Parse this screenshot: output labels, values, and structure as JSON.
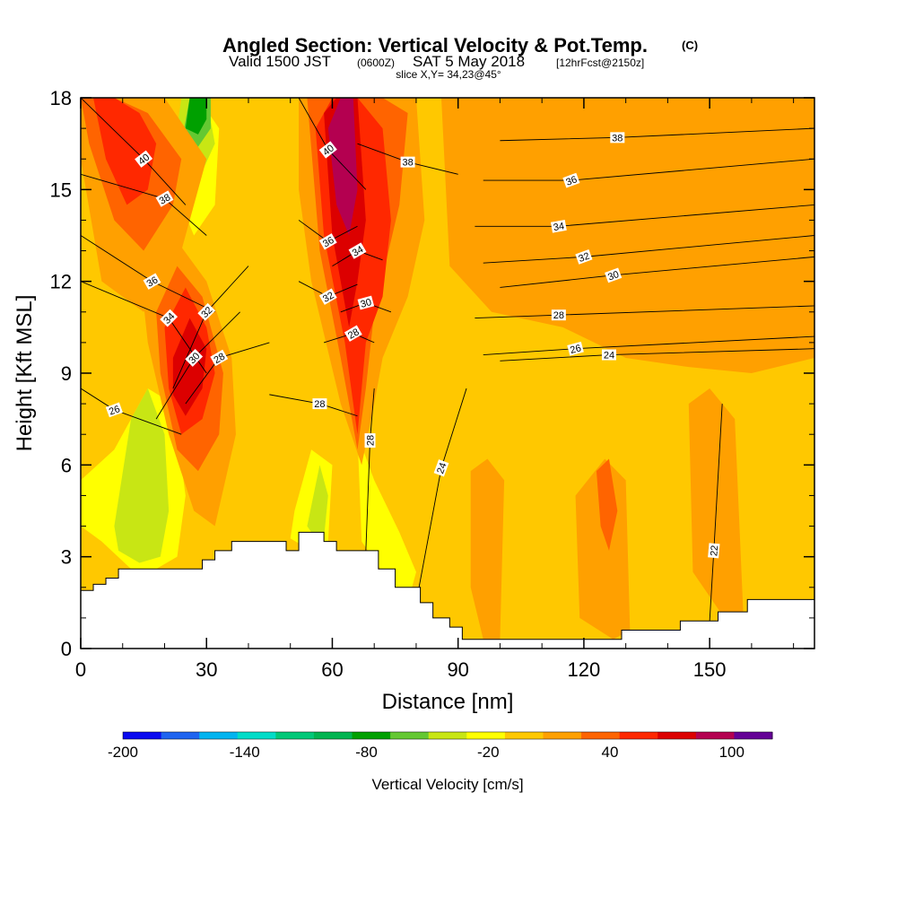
{
  "title": {
    "main": "Angled Section: Vertical Velocity & Pot.Temp.",
    "main_unit": "(C)",
    "valid_prefix": "Valid 1500 JST",
    "valid_utc": "(0600Z)",
    "valid_date": "SAT 5 May 2018",
    "forecast": "[12hrFcst@2150z]",
    "slice": "slice X,Y= 34,23@45°"
  },
  "chart_data": {
    "type": "heatmap",
    "xlabel": "Distance [nm]",
    "ylabel": "Height [Kft MSL]",
    "xlim": [
      0,
      175
    ],
    "ylim": [
      0,
      18
    ],
    "x_ticks": [
      "0",
      "30",
      "60",
      "90",
      "120",
      "150"
    ],
    "y_ticks": [
      "0",
      "3",
      "6",
      "9",
      "12",
      "15",
      "18"
    ],
    "colorbar": {
      "label": "Vertical Velocity [cm/s]",
      "tick_labels": [
        "-200",
        "-140",
        "-80",
        "-20",
        "40",
        "100"
      ],
      "tick_values": [
        -200,
        -140,
        -80,
        -20,
        40,
        100
      ],
      "levels": [
        -200,
        -180,
        -160,
        -140,
        -120,
        -100,
        -80,
        -60,
        -40,
        -20,
        0,
        20,
        40,
        60,
        80,
        100,
        120
      ],
      "colors": [
        "#0a0af0",
        "#1e64f0",
        "#00b4f0",
        "#00dcc8",
        "#00c878",
        "#00b450",
        "#00a000",
        "#64c832",
        "#c8e614",
        "#ffff00",
        "#ffc800",
        "#ffa000",
        "#ff6400",
        "#ff2800",
        "#dc0000",
        "#b40050",
        "#640096"
      ]
    },
    "terrain": [
      [
        0,
        1.9
      ],
      [
        3,
        1.9
      ],
      [
        3,
        2.1
      ],
      [
        6,
        2.1
      ],
      [
        6,
        2.3
      ],
      [
        9,
        2.3
      ],
      [
        9,
        2.6
      ],
      [
        29,
        2.6
      ],
      [
        29,
        2.9
      ],
      [
        32,
        2.9
      ],
      [
        32,
        3.2
      ],
      [
        36,
        3.2
      ],
      [
        36,
        3.5
      ],
      [
        49,
        3.5
      ],
      [
        49,
        3.2
      ],
      [
        52,
        3.2
      ],
      [
        52,
        3.8
      ],
      [
        58,
        3.8
      ],
      [
        58,
        3.5
      ],
      [
        61,
        3.5
      ],
      [
        61,
        3.2
      ],
      [
        71,
        3.2
      ],
      [
        71,
        2.6
      ],
      [
        75,
        2.6
      ],
      [
        75,
        2.0
      ],
      [
        81,
        2.0
      ],
      [
        81,
        1.5
      ],
      [
        84,
        1.5
      ],
      [
        84,
        1.0
      ],
      [
        88,
        1.0
      ],
      [
        88,
        0.7
      ],
      [
        91,
        0.7
      ],
      [
        91,
        0.3
      ],
      [
        129,
        0.3
      ],
      [
        129,
        0.6
      ],
      [
        143,
        0.6
      ],
      [
        143,
        0.9
      ],
      [
        152,
        0.9
      ],
      [
        152,
        1.2
      ],
      [
        159,
        1.2
      ],
      [
        159,
        1.6
      ],
      [
        175,
        1.6
      ]
    ],
    "velocity_regions": [
      {
        "value": -20,
        "color": "#ffff00",
        "x": [
          0,
          8,
          16,
          22,
          25,
          23,
          18,
          12,
          5,
          0
        ],
        "y": [
          5.5,
          6.5,
          8.5,
          8.0,
          5.0,
          3.0,
          2.6,
          2.6,
          3.5,
          4.0
        ]
      },
      {
        "value": -40,
        "color": "#c8e614",
        "x": [
          8,
          12,
          16,
          20,
          21,
          19,
          14,
          9
        ],
        "y": [
          4.0,
          7.5,
          8.5,
          7.0,
          4.5,
          3.0,
          2.8,
          3.2
        ]
      },
      {
        "value": -20,
        "color": "#ffff00",
        "x": [
          23,
          28,
          33,
          32,
          27,
          24
        ],
        "y": [
          16.0,
          18.0,
          17.0,
          14.5,
          13.5,
          14.5
        ]
      },
      {
        "value": -40,
        "color": "#c8e614",
        "x": [
          22,
          24,
          30,
          32,
          27
        ],
        "y": [
          16.0,
          18.0,
          18.0,
          16.5,
          15.0
        ]
      },
      {
        "value": -60,
        "color": "#64c832",
        "x": [
          24,
          26,
          31,
          31,
          27
        ],
        "y": [
          16.5,
          18.0,
          18.0,
          17.0,
          16.2
        ]
      },
      {
        "value": -80,
        "color": "#00a000",
        "x": [
          25,
          26,
          30,
          30,
          28
        ],
        "y": [
          17.0,
          18.0,
          18.0,
          17.3,
          16.8
        ]
      },
      {
        "value": -20,
        "color": "#ffff00",
        "x": [
          51,
          55,
          60,
          59,
          55,
          50
        ],
        "y": [
          4.5,
          6.5,
          6.0,
          3.5,
          3.2,
          3.6
        ]
      },
      {
        "value": -40,
        "color": "#c8e614",
        "x": [
          54,
          57,
          59,
          58,
          55
        ],
        "y": [
          4.0,
          6.0,
          5.0,
          3.6,
          3.8
        ]
      },
      {
        "value": -20,
        "color": "#ffff00",
        "x": [
          66,
          70,
          76,
          80,
          78,
          72,
          67
        ],
        "y": [
          7.0,
          5.5,
          3.8,
          2.5,
          1.5,
          2.5,
          3.5
        ]
      },
      {
        "value": 20,
        "color": "#ffa000",
        "x": [
          0,
          10,
          20,
          30,
          24,
          15,
          5,
          0
        ],
        "y": [
          18.0,
          18.0,
          18.0,
          16.0,
          13.0,
          11.0,
          12.0,
          16.0
        ]
      },
      {
        "value": 40,
        "color": "#ff6400",
        "x": [
          0,
          8,
          16,
          24,
          22,
          15,
          8,
          2
        ],
        "y": [
          18.0,
          18.0,
          17.5,
          16.0,
          14.5,
          13.0,
          14.0,
          16.5
        ]
      },
      {
        "value": 60,
        "color": "#ff2800",
        "x": [
          3,
          8,
          14,
          18,
          16,
          11,
          6
        ],
        "y": [
          18.0,
          18.0,
          17.5,
          16.5,
          15.0,
          14.5,
          16.0
        ]
      },
      {
        "value": 20,
        "color": "#ffa000",
        "x": [
          14,
          22,
          30,
          36,
          37,
          32,
          27,
          21,
          16
        ],
        "y": [
          12.5,
          13.5,
          12.0,
          9.5,
          7.0,
          4.0,
          4.5,
          7.0,
          10.0
        ]
      },
      {
        "value": 40,
        "color": "#ff6400",
        "x": [
          18,
          23,
          29,
          34,
          33,
          28,
          23,
          19
        ],
        "y": [
          11.0,
          12.5,
          11.5,
          9.0,
          7.0,
          5.8,
          6.5,
          9.0
        ]
      },
      {
        "value": 60,
        "color": "#ff2800",
        "x": [
          20,
          25,
          30,
          32,
          29,
          24,
          21
        ],
        "y": [
          10.5,
          11.8,
          10.5,
          9.0,
          7.5,
          7.0,
          8.5
        ]
      },
      {
        "value": 80,
        "color": "#dc0000",
        "x": [
          22,
          26,
          30,
          29,
          25,
          22
        ],
        "y": [
          9.5,
          10.8,
          9.8,
          8.5,
          7.6,
          8.3
        ]
      },
      {
        "value": 20,
        "color": "#ffa000",
        "x": [
          52,
          56,
          60,
          70,
          80,
          82,
          78,
          72,
          70,
          67,
          62,
          55,
          52
        ],
        "y": [
          18.0,
          18.0,
          18.0,
          18.0,
          18.0,
          14.0,
          11.5,
          9.5,
          8.0,
          6.0,
          8.0,
          12.0,
          15.0
        ]
      },
      {
        "value": 40,
        "color": "#ff6400",
        "x": [
          54,
          58,
          64,
          72,
          78,
          76,
          70,
          68,
          66,
          62,
          57
        ],
        "y": [
          18.0,
          18.0,
          18.0,
          18.0,
          17.5,
          14.5,
          11.0,
          8.5,
          6.5,
          9.5,
          13.0
        ]
      },
      {
        "value": 60,
        "color": "#ff2800",
        "x": [
          56,
          60,
          66,
          72,
          74,
          72,
          68,
          67,
          66,
          63,
          58
        ],
        "y": [
          17.0,
          18.0,
          18.0,
          17.0,
          14.0,
          11.5,
          10.0,
          8.5,
          7.0,
          10.0,
          13.5
        ]
      },
      {
        "value": 80,
        "color": "#dc0000",
        "x": [
          58,
          61,
          66,
          68,
          66,
          64,
          60
        ],
        "y": [
          17.5,
          18.0,
          18.0,
          14.0,
          12.0,
          10.5,
          13.5
        ]
      },
      {
        "value": 100,
        "color": "#b40050",
        "x": [
          59,
          62,
          65,
          66,
          64,
          61
        ],
        "y": [
          17.0,
          18.0,
          18.0,
          15.0,
          13.5,
          14.5
        ]
      },
      {
        "value": 20,
        "color": "#ffa000",
        "x": [
          86,
          95,
          112,
          125,
          140,
          155,
          168,
          175,
          175,
          160,
          145,
          130,
          115,
          98,
          88
        ],
        "y": [
          18.0,
          18.0,
          18.0,
          18.0,
          18.0,
          18.0,
          18.0,
          18.0,
          9.5,
          9.0,
          9.2,
          9.5,
          10.5,
          11.0,
          12.5
        ]
      },
      {
        "value": 20,
        "color": "#ffa000",
        "x": [
          93,
          97,
          101,
          100,
          96,
          93
        ],
        "y": [
          5.8,
          6.2,
          5.5,
          0.3,
          0.3,
          2.0
        ]
      },
      {
        "value": 20,
        "color": "#ffa000",
        "x": [
          118,
          125,
          130,
          131,
          127,
          119
        ],
        "y": [
          5.0,
          6.2,
          5.5,
          0.6,
          0.3,
          1.0
        ]
      },
      {
        "value": 40,
        "color": "#ff6400",
        "x": [
          123,
          126,
          128,
          126,
          124
        ],
        "y": [
          5.8,
          6.2,
          4.5,
          3.2,
          4.0
        ]
      },
      {
        "value": 20,
        "color": "#ffa000",
        "x": [
          145,
          150,
          156,
          158,
          154,
          146
        ],
        "y": [
          8.0,
          8.5,
          7.5,
          1.2,
          0.9,
          2.5
        ]
      },
      {
        "value": 20,
        "color": "#ffa000",
        "x": [
          158,
          164,
          170,
          172,
          168,
          160
        ],
        "y": [
          16.0,
          17.5,
          16.5,
          11.0,
          9.5,
          12.0
        ]
      }
    ],
    "theta_contours": [
      {
        "label": "40",
        "lx": 15,
        "ly": 16.0,
        "rot": -38,
        "x": [
          0,
          15,
          25
        ],
        "y": [
          18.0,
          16.0,
          14.5
        ]
      },
      {
        "label": "38",
        "lx": 20,
        "ly": 14.7,
        "rot": -30,
        "x": [
          0,
          20,
          30
        ],
        "y": [
          15.5,
          14.7,
          13.5
        ]
      },
      {
        "label": "36",
        "lx": 17,
        "ly": 12.0,
        "rot": -30,
        "x": [
          0,
          17,
          32
        ],
        "y": [
          13.5,
          12.0,
          11.0
        ]
      },
      {
        "label": "34",
        "lx": 21,
        "ly": 10.8,
        "rot": -45,
        "x": [
          0,
          21,
          30
        ],
        "y": [
          12.0,
          10.8,
          9.0
        ]
      },
      {
        "label": "32",
        "lx": 30,
        "ly": 11.0,
        "rot": -45,
        "x": [
          22,
          30,
          40
        ],
        "y": [
          8.5,
          11.0,
          12.5
        ]
      },
      {
        "label": "30",
        "lx": 27,
        "ly": 9.5,
        "rot": -45,
        "x": [
          18,
          27,
          38
        ],
        "y": [
          7.5,
          9.5,
          11.0
        ]
      },
      {
        "label": "28",
        "lx": 33,
        "ly": 9.5,
        "rot": -30,
        "x": [
          25,
          33,
          45
        ],
        "y": [
          8.0,
          9.5,
          10.0
        ]
      },
      {
        "label": "26",
        "lx": 8,
        "ly": 7.8,
        "rot": -20,
        "x": [
          0,
          8,
          24
        ],
        "y": [
          8.5,
          7.8,
          7.0
        ]
      },
      {
        "label": "40",
        "lx": 59,
        "ly": 16.3,
        "rot": -38,
        "x": [
          52,
          59,
          68
        ],
        "y": [
          18.0,
          16.3,
          15.0
        ]
      },
      {
        "label": "38",
        "lx": 78,
        "ly": 15.9,
        "rot": 0,
        "x": [
          66,
          78,
          90
        ],
        "y": [
          16.5,
          15.9,
          15.5
        ]
      },
      {
        "label": "36",
        "lx": 59,
        "ly": 13.3,
        "rot": -30,
        "x": [
          52,
          59,
          66
        ],
        "y": [
          14.0,
          13.3,
          13.8
        ]
      },
      {
        "label": "34",
        "lx": 66,
        "ly": 13.0,
        "rot": -30,
        "x": [
          60,
          66,
          72
        ],
        "y": [
          12.5,
          13.0,
          12.7
        ]
      },
      {
        "label": "32",
        "lx": 59,
        "ly": 11.5,
        "rot": -30,
        "x": [
          52,
          59,
          66
        ],
        "y": [
          12.0,
          11.5,
          11.9
        ]
      },
      {
        "label": "30",
        "lx": 68,
        "ly": 11.3,
        "rot": -15,
        "x": [
          62,
          68,
          74
        ],
        "y": [
          11.0,
          11.3,
          11.0
        ]
      },
      {
        "label": "28",
        "lx": 65,
        "ly": 10.3,
        "rot": -30,
        "x": [
          58,
          65,
          70
        ],
        "y": [
          10.0,
          10.3,
          10.0
        ]
      },
      {
        "label": "28",
        "lx": 57,
        "ly": 8.0,
        "rot": 0,
        "x": [
          45,
          57,
          66
        ],
        "y": [
          8.3,
          8.0,
          7.6
        ]
      },
      {
        "label": "28",
        "lx": 69,
        "ly": 6.8,
        "rot": -90,
        "x": [
          68,
          69,
          70
        ],
        "y": [
          3.2,
          6.8,
          8.5
        ]
      },
      {
        "label": "38",
        "lx": 128,
        "ly": 16.7,
        "rot": 0,
        "x": [
          100,
          128,
          175
        ],
        "y": [
          16.6,
          16.7,
          17.0
        ]
      },
      {
        "label": "36",
        "lx": 117,
        "ly": 15.3,
        "rot": -20,
        "x": [
          96,
          117,
          175
        ],
        "y": [
          15.3,
          15.3,
          16.0
        ]
      },
      {
        "label": "34",
        "lx": 114,
        "ly": 13.8,
        "rot": -10,
        "x": [
          94,
          114,
          175
        ],
        "y": [
          13.8,
          13.8,
          14.5
        ]
      },
      {
        "label": "32",
        "lx": 120,
        "ly": 12.8,
        "rot": -20,
        "x": [
          96,
          120,
          175
        ],
        "y": [
          12.6,
          12.8,
          13.5
        ]
      },
      {
        "label": "30",
        "lx": 127,
        "ly": 12.2,
        "rot": -20,
        "x": [
          100,
          127,
          175
        ],
        "y": [
          11.8,
          12.2,
          12.8
        ]
      },
      {
        "label": "28",
        "lx": 114,
        "ly": 10.9,
        "rot": 0,
        "x": [
          94,
          114,
          175
        ],
        "y": [
          10.8,
          10.9,
          11.2
        ]
      },
      {
        "label": "26",
        "lx": 118,
        "ly": 9.8,
        "rot": -15,
        "x": [
          96,
          118,
          175
        ],
        "y": [
          9.6,
          9.8,
          10.2
        ]
      },
      {
        "label": "24",
        "lx": 126,
        "ly": 9.6,
        "rot": 0,
        "x": [
          100,
          126,
          175
        ],
        "y": [
          9.4,
          9.6,
          9.8
        ]
      },
      {
        "label": "24",
        "lx": 86,
        "ly": 5.9,
        "rot": -70,
        "x": [
          80,
          86,
          92
        ],
        "y": [
          1.5,
          5.9,
          8.5
        ]
      },
      {
        "label": "22",
        "lx": 151,
        "ly": 3.2,
        "rot": -85,
        "x": [
          150,
          151,
          153
        ],
        "y": [
          0.9,
          3.2,
          8.0
        ]
      }
    ],
    "pot_temp_units": "C",
    "grid": false
  }
}
